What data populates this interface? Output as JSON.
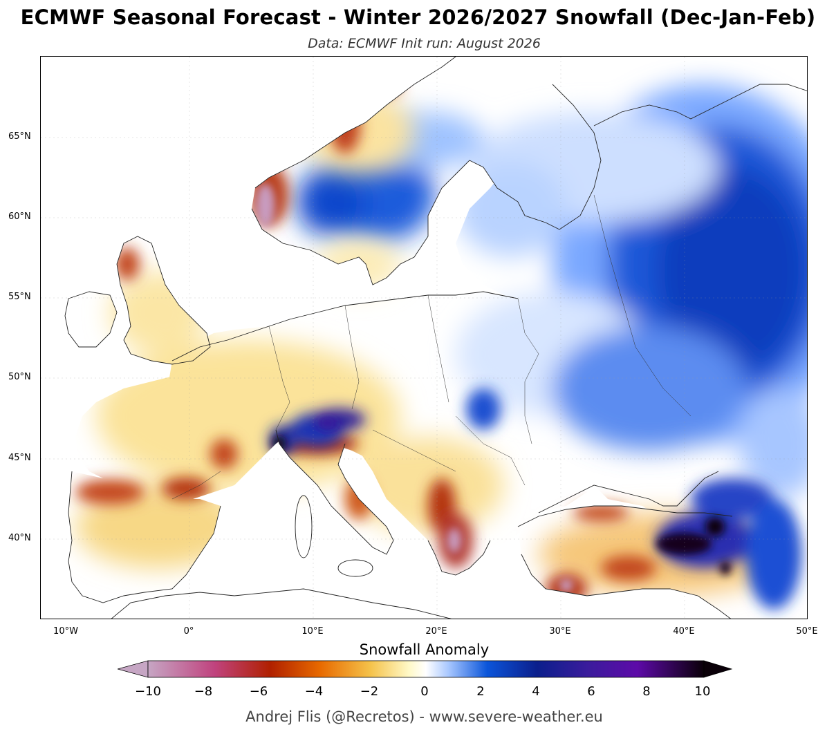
{
  "header": {
    "title": "ECMWF Seasonal Forecast - Winter 2026/2027 Snowfall (Dec-Jan-Feb)",
    "subtitle": "Data: ECMWF   Init run: August 2026"
  },
  "map": {
    "latitude_labels": [
      "65°N",
      "60°N",
      "55°N",
      "50°N",
      "45°N",
      "40°N"
    ],
    "longitude_labels": [
      "10°W",
      "0°",
      "10°E",
      "20°E",
      "30°E",
      "40°E",
      "50°E"
    ],
    "colors": {
      "land_neutral": "#ffffff",
      "coast_lines": "#222222",
      "negative_light": "#fbe8a6",
      "negative_mid": "#f2a93b",
      "negative_strong": "#b32d0e",
      "negative_extreme": "#c896b8",
      "positive_light": "#cfe2ff",
      "positive_mid": "#0a4fd6",
      "positive_strong": "#1a1c8a",
      "positive_extreme": "#0b0410"
    }
  },
  "colorbar": {
    "title": "Snowfall Anomaly",
    "ticks": [
      "−10",
      "−8",
      "−6",
      "−4",
      "−2",
      "0",
      "2",
      "4",
      "6",
      "8",
      "10"
    ],
    "stops": [
      "#c6a6c4",
      "#c0437e",
      "#b02000",
      "#e86a00",
      "#f5c24a",
      "#fff9c8",
      "#ffffff",
      "#a9c8ff",
      "#0b55da",
      "#0b1f8c",
      "#3a1c9c",
      "#5d0aa8",
      "#0a0008"
    ]
  },
  "footer": {
    "credit": "Andrej Flis (@Recretos) - www.severe-weather.eu"
  }
}
